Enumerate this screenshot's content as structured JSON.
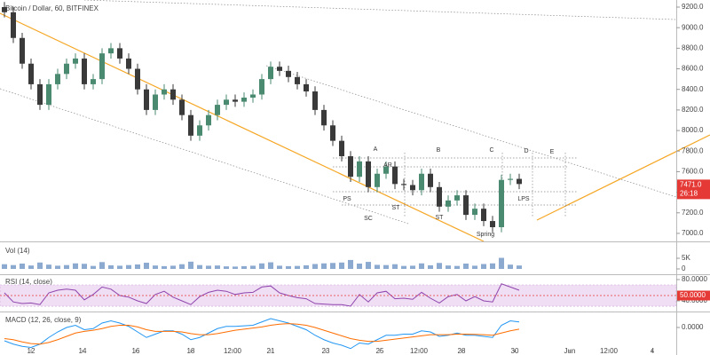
{
  "chart_data": [
    {
      "type": "candlestick",
      "title": "Bitcoin / Dollar, 60, BITFINEX",
      "up_color": "#4a8a70",
      "down_color": "#3a3a3a",
      "candles": [
        [
          9200,
          9250,
          9100,
          9150
        ],
        [
          9150,
          9200,
          8850,
          8900
        ],
        [
          8900,
          8950,
          8600,
          8650
        ],
        [
          8650,
          8700,
          8400,
          8450
        ],
        [
          8450,
          8500,
          8200,
          8250
        ],
        [
          8250,
          8500,
          8200,
          8450
        ],
        [
          8450,
          8600,
          8400,
          8550
        ],
        [
          8550,
          8700,
          8500,
          8650
        ],
        [
          8650,
          8750,
          8600,
          8700
        ],
        [
          8700,
          8750,
          8400,
          8450
        ],
        [
          8450,
          8550,
          8400,
          8500
        ],
        [
          8500,
          8800,
          8450,
          8750
        ],
        [
          8750,
          8850,
          8700,
          8800
        ],
        [
          8800,
          8850,
          8650,
          8700
        ],
        [
          8700,
          8750,
          8550,
          8600
        ],
        [
          8600,
          8650,
          8350,
          8400
        ],
        [
          8400,
          8450,
          8150,
          8200
        ],
        [
          8200,
          8400,
          8150,
          8350
        ],
        [
          8350,
          8450,
          8300,
          8400
        ],
        [
          8400,
          8450,
          8250,
          8300
        ],
        [
          8300,
          8350,
          8100,
          8150
        ],
        [
          8150,
          8200,
          7900,
          7950
        ],
        [
          7950,
          8100,
          7900,
          8050
        ],
        [
          8050,
          8200,
          8000,
          8150
        ],
        [
          8150,
          8300,
          8100,
          8250
        ],
        [
          8250,
          8350,
          8200,
          8300
        ],
        [
          8300,
          8350,
          8230,
          8280
        ],
        [
          8280,
          8370,
          8230,
          8320
        ],
        [
          8320,
          8400,
          8270,
          8350
        ],
        [
          8350,
          8550,
          8300,
          8500
        ],
        [
          8500,
          8670,
          8450,
          8620
        ],
        [
          8620,
          8670,
          8530,
          8580
        ],
        [
          8580,
          8630,
          8470,
          8520
        ],
        [
          8520,
          8570,
          8400,
          8450
        ],
        [
          8450,
          8500,
          8330,
          8380
        ],
        [
          8380,
          8430,
          8150,
          8200
        ],
        [
          8200,
          8250,
          8000,
          8050
        ],
        [
          8050,
          8100,
          7850,
          7900
        ],
        [
          7900,
          7950,
          7700,
          7750
        ],
        [
          7750,
          7800,
          7500,
          7550
        ],
        [
          7550,
          7750,
          7500,
          7700
        ],
        [
          7700,
          7750,
          7400,
          7450
        ],
        [
          7450,
          7630,
          7400,
          7580
        ],
        [
          7580,
          7700,
          7530,
          7650
        ],
        [
          7650,
          7700,
          7430,
          7480
        ],
        [
          7480,
          7530,
          7420,
          7470
        ],
        [
          7470,
          7520,
          7370,
          7420
        ],
        [
          7420,
          7630,
          7370,
          7580
        ],
        [
          7580,
          7630,
          7400,
          7450
        ],
        [
          7450,
          7500,
          7210,
          7260
        ],
        [
          7260,
          7370,
          7210,
          7320
        ],
        [
          7320,
          7420,
          7270,
          7370
        ],
        [
          7370,
          7420,
          7130,
          7180
        ],
        [
          7180,
          7290,
          7130,
          7240
        ],
        [
          7240,
          7290,
          7070,
          7120
        ],
        [
          7120,
          7170,
          7010,
          7060
        ],
        [
          7060,
          7570,
          7010,
          7520
        ],
        [
          7520,
          7580,
          7470,
          7530
        ],
        [
          7530,
          7580,
          7430,
          7480
        ]
      ],
      "xlim": [
        -0.5,
        76
      ],
      "xticks": [
        {
          "value": 3,
          "label": "12"
        },
        {
          "value": 8.8,
          "label": "14"
        },
        {
          "value": 14.8,
          "label": "16"
        },
        {
          "value": 21,
          "label": "18"
        },
        {
          "value": 25.7,
          "label": "12:00"
        },
        {
          "value": 30,
          "label": "21"
        },
        {
          "value": 36.2,
          "label": "23"
        },
        {
          "value": 42.3,
          "label": "25"
        },
        {
          "value": 46.7,
          "label": "12:00"
        },
        {
          "value": 51.5,
          "label": "28"
        },
        {
          "value": 57.5,
          "label": "30"
        },
        {
          "value": 63.7,
          "label": "Jun"
        },
        {
          "value": 68.1,
          "label": "12:00"
        },
        {
          "value": 73,
          "label": "4"
        }
      ],
      "ylim": [
        6922,
        9269
      ],
      "yticks": [
        {
          "value": 7000,
          "label": "7000.0"
        },
        {
          "value": 7200,
          "label": "7200.0"
        },
        {
          "value": 7400,
          "label": "7400.0"
        },
        {
          "value": 7600,
          "label": "7600.0"
        },
        {
          "value": 7800,
          "label": "7800.0"
        },
        {
          "value": 8000,
          "label": "8000.0"
        },
        {
          "value": 8200,
          "label": "8200.0"
        },
        {
          "value": 8400,
          "label": "8400.0"
        },
        {
          "value": 8600,
          "label": "8600.0"
        },
        {
          "value": 8800,
          "label": "8800.0"
        },
        {
          "value": 9000,
          "label": "9000.0"
        },
        {
          "value": 9200,
          "label": "9200.0"
        }
      ],
      "last_price": {
        "value": 7471,
        "label": "7471.0"
      },
      "countdown": "26:18",
      "badge_color": "#e53935",
      "annotations": [
        "A",
        "B",
        "C",
        "D",
        "E",
        "AR",
        "PS",
        "ST",
        "SC",
        "ST",
        "LPS",
        "Spring"
      ]
    },
    {
      "type": "bar",
      "title": "Vol (14)",
      "color": "#6f93c4",
      "values": [
        2200,
        1800,
        2500,
        1600,
        3000,
        2000,
        1500,
        1800,
        2600,
        2400,
        1400,
        3200,
        1700,
        1500,
        1800,
        2100,
        2900,
        1600,
        1300,
        1500,
        2200,
        3400,
        1800,
        1500,
        1600,
        1200,
        1100,
        1300,
        1500,
        2600,
        3100,
        1500,
        1300,
        1400,
        1700,
        2300,
        2600,
        2800,
        3000,
        4200,
        2500,
        3300,
        1900,
        1800,
        2200,
        1400,
        1500,
        2600,
        1700,
        2800,
        1600,
        1400,
        2500,
        1500,
        2300,
        2600,
        5200,
        2000,
        1600
      ],
      "ylim": [
        -2083,
        12500
      ],
      "yticks": [
        {
          "value": 5000,
          "label": "5K"
        },
        0
      ]
    },
    {
      "type": "line",
      "title": "RSI (14, close)",
      "series": [
        {
          "color": "#8e44ad",
          "values": [
            55,
            38,
            35,
            36,
            33,
            55,
            60,
            62,
            60,
            42,
            52,
            66,
            62,
            50,
            47,
            40,
            35,
            52,
            58,
            47,
            40,
            33,
            48,
            56,
            60,
            58,
            52,
            55,
            56,
            66,
            68,
            55,
            50,
            46,
            44,
            35,
            34,
            33,
            33,
            30,
            52,
            38,
            55,
            58,
            44,
            45,
            43,
            56,
            45,
            36,
            48,
            52,
            40,
            48,
            40,
            38,
            72,
            66,
            60
          ]
        }
      ],
      "band": [
        30,
        70
      ],
      "band_color": "#f0def4",
      "ylim": [
        21.7,
        88.3
      ],
      "yticks": [
        {
          "value": 80,
          "label": "80.0000"
        },
        {
          "value": 40,
          "label": "40.0000"
        }
      ],
      "midline": {
        "value": 50,
        "label": "50.0000"
      },
      "midline_color": "#e53935"
    },
    {
      "type": "line",
      "title": "MACD (12, 26, close, 9)",
      "series": [
        {
          "color": "#2196f3",
          "values": [
            -120,
            -150,
            -170,
            -180,
            -150,
            -90,
            -40,
            0,
            20,
            -20,
            -10,
            40,
            60,
            40,
            10,
            -40,
            -90,
            -60,
            -30,
            -30,
            -60,
            -110,
            -90,
            -50,
            -10,
            10,
            10,
            15,
            20,
            50,
            80,
            60,
            40,
            10,
            -20,
            -70,
            -110,
            -140,
            -160,
            -190,
            -140,
            -150,
            -110,
            -70,
            -70,
            -60,
            -60,
            -30,
            -40,
            -80,
            -70,
            -50,
            -70,
            -70,
            -80,
            -90,
            20,
            60,
            50
          ]
        },
        {
          "color": "#ff6d00",
          "values": [
            -100,
            -110,
            -130,
            -145,
            -150,
            -135,
            -110,
            -80,
            -50,
            -35,
            -25,
            -10,
            10,
            20,
            20,
            5,
            -20,
            -35,
            -35,
            -35,
            -40,
            -55,
            -65,
            -65,
            -55,
            -40,
            -25,
            -15,
            -5,
            5,
            20,
            30,
            35,
            30,
            20,
            0,
            -25,
            -50,
            -75,
            -100,
            -115,
            -125,
            -125,
            -115,
            -105,
            -95,
            -85,
            -75,
            -65,
            -65,
            -65,
            -60,
            -60,
            -62,
            -65,
            -70,
            -50,
            -30,
            -15
          ]
        }
      ],
      "ylim": [
        -200,
        136
      ],
      "yticks": [
        {
          "value": 0,
          "label": "0.0000"
        }
      ]
    }
  ]
}
